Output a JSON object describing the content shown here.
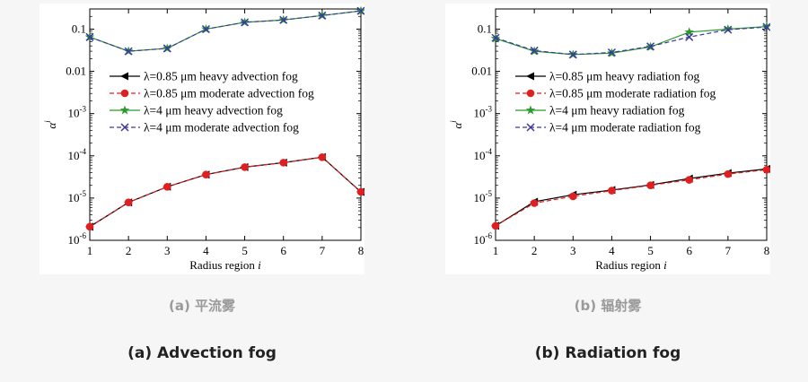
{
  "colors": {
    "heavy_085": "#000000",
    "moderate_085": "#e02020",
    "heavy_4": "#2a9a2a",
    "moderate_4": "#3a3aa0"
  },
  "panels": [
    {
      "caption_cn": "(a) 平流雾",
      "caption_en": "(a)  Advection fog",
      "chart_data": {
        "type": "line",
        "xlabel": "Radius region i",
        "ylabel": "α^i",
        "yscale": "log",
        "xlim": [
          1,
          8
        ],
        "ylim": [
          1e-06,
          0.3
        ],
        "x_ticks": [
          "1",
          "2",
          "3",
          "4",
          "5",
          "6",
          "7",
          "8"
        ],
        "y_ticks": [
          {
            "value": 1e-06,
            "label": "10-6"
          },
          {
            "value": 1e-05,
            "label": "10-5"
          },
          {
            "value": 0.0001,
            "label": "10-4"
          },
          {
            "value": 0.001,
            "label": "10-3"
          },
          {
            "value": 0.01,
            "label": "0.01"
          },
          {
            "value": 0.1,
            "label": "0.1"
          }
        ],
        "legend_position": "middle-left",
        "x": [
          1,
          2,
          3,
          4,
          5,
          6,
          7,
          8
        ],
        "series": [
          {
            "name": "λ=0.85 μm heavy advection fog",
            "values": [
              2.1e-06,
              7.9e-06,
              1.85e-05,
              3.6e-05,
              5.4e-05,
              6.9e-05,
              9.3e-05,
              1.4e-05
            ],
            "color": "heavy_085",
            "marker": "triangle-left",
            "dash": false
          },
          {
            "name": "λ=0.85 μm moderate advection fog",
            "values": [
              2.1e-06,
              7.9e-06,
              1.85e-05,
              3.6e-05,
              5.4e-05,
              6.9e-05,
              9.3e-05,
              1.4e-05
            ],
            "color": "moderate_085",
            "marker": "circle",
            "dash": true
          },
          {
            "name": "λ=4 μm heavy advection fog",
            "values": [
              0.065,
              0.03,
              0.035,
              0.1,
              0.145,
              0.165,
              0.21,
              0.27
            ],
            "color": "heavy_4",
            "marker": "star",
            "dash": false
          },
          {
            "name": "λ=4 μm moderate advection fog",
            "values": [
              0.065,
              0.03,
              0.035,
              0.1,
              0.145,
              0.165,
              0.21,
              0.27
            ],
            "color": "moderate_4",
            "marker": "x",
            "dash": true
          }
        ]
      }
    },
    {
      "caption_cn": "(b) 辐射雾",
      "caption_en": "(b)  Radiation fog",
      "chart_data": {
        "type": "line",
        "xlabel": "Radius region i",
        "ylabel": "α^i",
        "yscale": "log",
        "xlim": [
          1,
          8
        ],
        "ylim": [
          1e-06,
          0.3
        ],
        "x_ticks": [
          "1",
          "2",
          "3",
          "4",
          "5",
          "6",
          "7",
          "8"
        ],
        "y_ticks": [
          {
            "value": 1e-06,
            "label": "10-6"
          },
          {
            "value": 1e-05,
            "label": "10-5"
          },
          {
            "value": 0.0001,
            "label": "10-4"
          },
          {
            "value": 0.001,
            "label": "10-3"
          },
          {
            "value": 0.01,
            "label": "0.01"
          },
          {
            "value": 0.1,
            "label": "0.1"
          }
        ],
        "legend_position": "middle-left",
        "x": [
          1,
          2,
          3,
          4,
          5,
          6,
          7,
          8
        ],
        "series": [
          {
            "name": "λ=0.85 μm heavy radiation fog",
            "values": [
              2.2e-06,
              8.2e-06,
              1.2e-05,
              1.55e-05,
              2.05e-05,
              2.9e-05,
              3.9e-05,
              4.9e-05
            ],
            "color": "heavy_085",
            "marker": "triangle-left",
            "dash": false
          },
          {
            "name": "λ=0.85 μm moderate radiation fog",
            "values": [
              2.2e-06,
              7.6e-06,
              1.1e-05,
              1.5e-05,
              2e-05,
              2.7e-05,
              3.7e-05,
              4.7e-05
            ],
            "color": "moderate_085",
            "marker": "circle",
            "dash": true
          },
          {
            "name": "λ=4 μm heavy radiation fog",
            "values": [
              0.06,
              0.03,
              0.025,
              0.027,
              0.038,
              0.085,
              0.1,
              0.115
            ],
            "color": "heavy_4",
            "marker": "star",
            "dash": false
          },
          {
            "name": "λ=4 μm moderate radiation fog",
            "values": [
              0.062,
              0.031,
              0.025,
              0.028,
              0.039,
              0.065,
              0.097,
              0.112
            ],
            "color": "moderate_4",
            "marker": "x",
            "dash": true
          }
        ]
      }
    }
  ]
}
